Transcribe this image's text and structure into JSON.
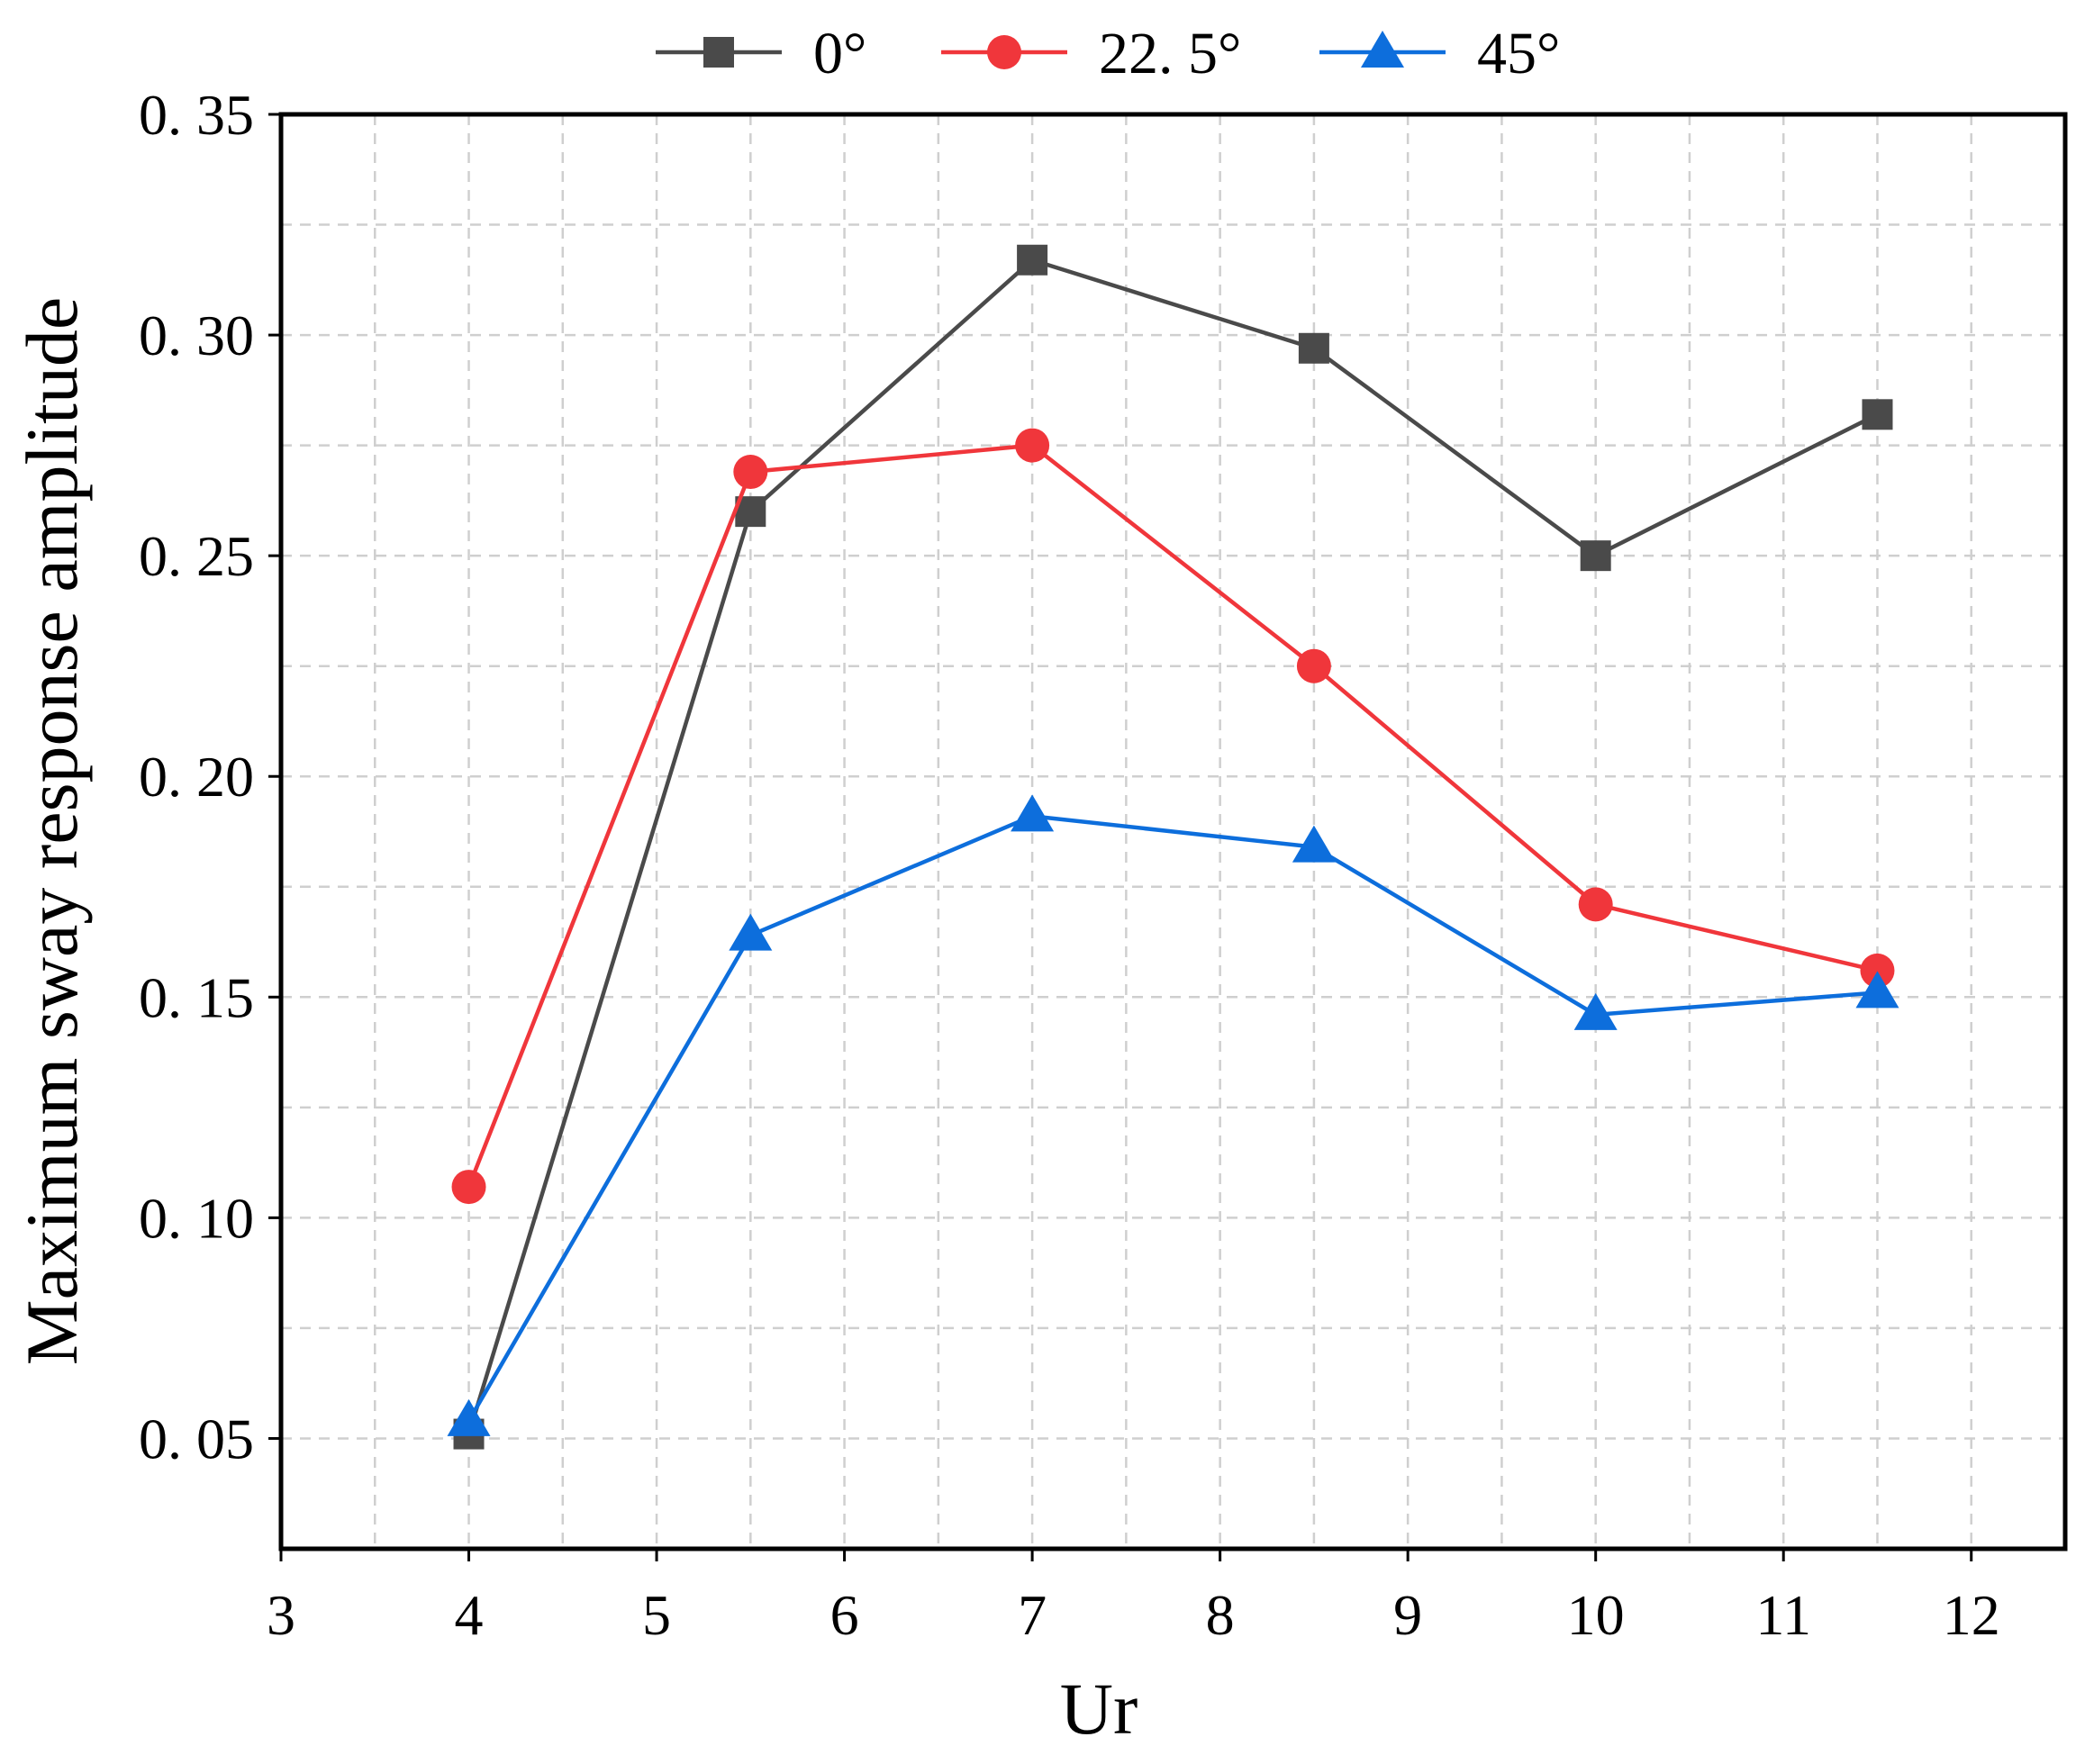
{
  "chart_data": {
    "type": "line",
    "title": "",
    "xlabel": "Ur",
    "ylabel": "Maximum sway response amplitude",
    "xlim": [
      3,
      12.5
    ],
    "ylim": [
      0.025,
      0.35
    ],
    "x_ticks": [
      3,
      4,
      5,
      6,
      7,
      8,
      9,
      10,
      11,
      12
    ],
    "x_tick_labels": [
      "3",
      "4",
      "5",
      "6",
      "7",
      "8",
      "9",
      "10",
      "11",
      "12"
    ],
    "y_ticks": [
      0.05,
      0.1,
      0.15,
      0.2,
      0.25,
      0.3,
      0.35
    ],
    "y_tick_labels": [
      "0. 05",
      "0. 10",
      "0. 15",
      "0. 20",
      "0. 25",
      "0. 30",
      "0. 35"
    ],
    "x_minor_grid": [
      3.5,
      4.5,
      5.5,
      6.5,
      7.5,
      8.5,
      9.5,
      10.5,
      11.5,
      12.5
    ],
    "y_minor_grid": [
      0.075,
      0.125,
      0.175,
      0.225,
      0.275,
      0.325
    ],
    "grid": true,
    "legend_position": "top-center",
    "x": [
      4,
      5.5,
      7,
      8.5,
      10,
      11.5
    ],
    "series": [
      {
        "name": "0°",
        "label": "0°",
        "color": "#4a4a4a",
        "marker": "square",
        "values": [
          0.051,
          0.26,
          0.317,
          0.297,
          0.25,
          0.282
        ]
      },
      {
        "name": "22.5°",
        "label": "22. 5°",
        "color": "#f0363b",
        "marker": "circle",
        "values": [
          0.107,
          0.269,
          0.275,
          0.225,
          0.171,
          0.156
        ]
      },
      {
        "name": "45°",
        "label": "45°",
        "color": "#0d6edc",
        "marker": "triangle",
        "values": [
          0.054,
          0.164,
          0.191,
          0.184,
          0.146,
          0.151
        ]
      }
    ]
  }
}
